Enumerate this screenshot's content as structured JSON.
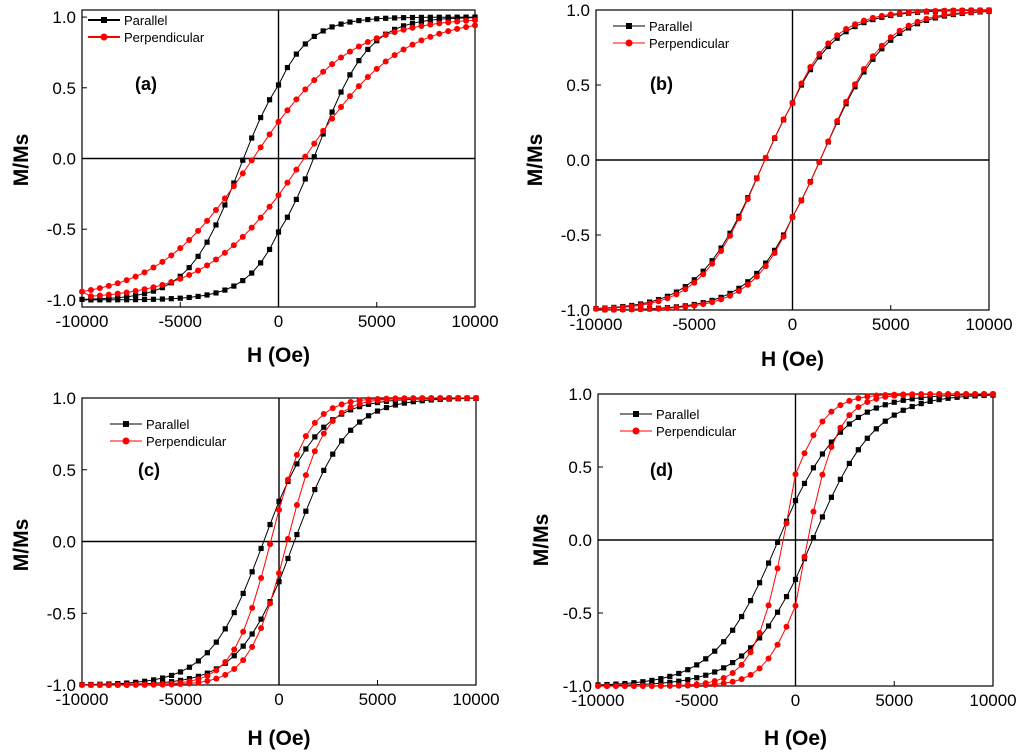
{
  "colors": {
    "parallel": "#000000",
    "perpendicular": "#ff0000",
    "axes": "#000000"
  },
  "chart_data": [
    {
      "type": "line",
      "panel_label": "(a)",
      "xlabel": "H (Oe)",
      "ylabel": "M/Ms",
      "xlim": [
        -10000,
        10000
      ],
      "ylim": [
        -1.05,
        1.05
      ],
      "xticks": [
        "-10000",
        "-5000",
        "0",
        "5000",
        "10000"
      ],
      "yticks": [
        "-1.0",
        "-0.5",
        "0.0",
        "0.5",
        "1.0"
      ],
      "legend": [
        "Parallel",
        "Perpendicular"
      ],
      "series": [
        {
          "name": "Parallel",
          "Hc": 2000,
          "Mr": 0.52,
          "Hs": 7500,
          "span": 2600
        },
        {
          "name": "Perpendicular",
          "Hc": 1200,
          "Mr": 0.26,
          "Hs": 9500,
          "span": 5000
        }
      ]
    },
    {
      "type": "line",
      "panel_label": "(b)",
      "xlabel": "H (Oe)",
      "ylabel": "M/Ms",
      "xlim": [
        -10000,
        10000
      ],
      "ylim": [
        -1.0,
        1.0
      ],
      "xticks": [
        "-10000",
        "-5000",
        "0",
        "5000",
        "10000"
      ],
      "yticks": [
        "-1.0",
        "-0.5",
        "0.0",
        "0.5",
        "1.0"
      ],
      "legend": [
        "Parallel",
        "Perpendicular"
      ],
      "series": [
        {
          "name": "Parallel",
          "Hc": 1600,
          "Mr": 0.38,
          "Hs": 9500,
          "span": 3200
        },
        {
          "name": "Perpendicular",
          "Hc": 1700,
          "Mr": 0.38,
          "Hs": 9500,
          "span": 3000
        }
      ]
    },
    {
      "type": "line",
      "panel_label": "(c)",
      "xlabel": "H (Oe)",
      "ylabel": "M/Ms",
      "xlim": [
        -10000,
        10000
      ],
      "ylim": [
        -1.0,
        1.0
      ],
      "xticks": [
        "-10000",
        "-5000",
        "0",
        "5000",
        "10000"
      ],
      "yticks": [
        "-1.0",
        "-0.5",
        "0.0",
        "0.5",
        "1.0"
      ],
      "legend": [
        "Parallel",
        "Perpendicular"
      ],
      "series": [
        {
          "name": "Parallel",
          "Hc": 700,
          "Mr": 0.28,
          "Hs": 9500,
          "span": 2800
        },
        {
          "name": "Perpendicular",
          "Hc": 400,
          "Mr": 0.22,
          "Hs": 8500,
          "span": 1900
        }
      ]
    },
    {
      "type": "line",
      "panel_label": "(d)",
      "xlabel": "H (Oe)",
      "ylabel": "M/Ms",
      "xlim": [
        -10000,
        10000
      ],
      "ylim": [
        -1.0,
        1.0
      ],
      "xticks": [
        "-10000",
        "-5000",
        "0",
        "5000",
        "10000"
      ],
      "yticks": [
        "-1.0",
        "-0.5",
        "0.0",
        "0.5",
        "1.0"
      ],
      "legend": [
        "Parallel",
        "Perpendicular"
      ],
      "series": [
        {
          "name": "Parallel",
          "Hc": 700,
          "Mr": 0.27,
          "Hs": 10000,
          "span": 3300
        },
        {
          "name": "Perpendicular",
          "Hc": 150,
          "Mr": 0.45,
          "Hs": 9500,
          "span": 1800
        }
      ]
    }
  ]
}
